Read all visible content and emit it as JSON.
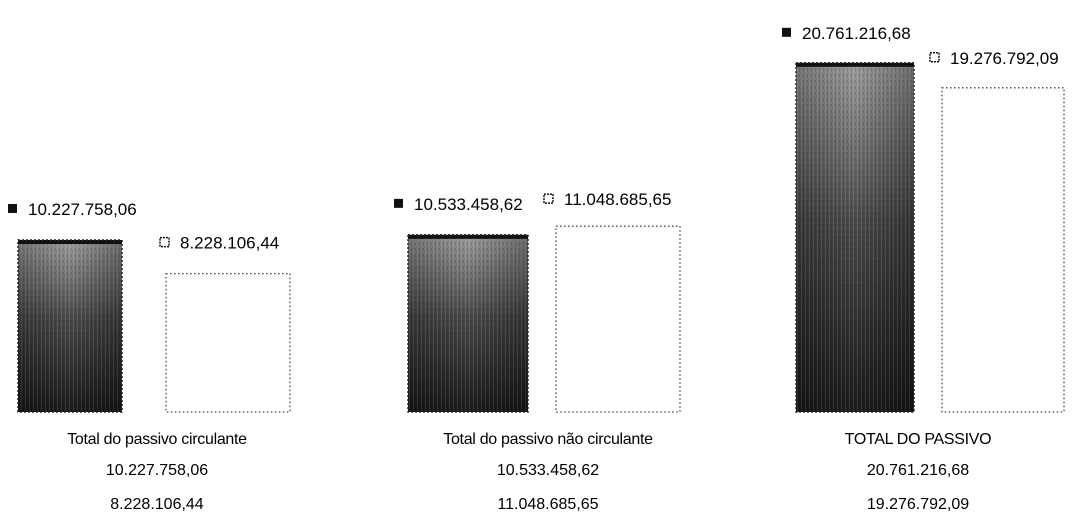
{
  "chart_data": {
    "type": "bar",
    "title": "",
    "xlabel": "",
    "ylabel": "",
    "categories": [
      "Total do passivo circulante",
      "Total do passivo não circulante",
      "TOTAL DO PASSIVO"
    ],
    "series": [
      {
        "values": [
          10227758.06,
          10533458.62,
          20761216.68
        ],
        "labels": [
          "10.227.758,06",
          "10.533.458,62",
          "20.761.216,68"
        ],
        "fill": "dark-gradient",
        "color": "#1a1a1a"
      },
      {
        "values": [
          8228106.44,
          11048685.65,
          19276792.09
        ],
        "labels": [
          "8.228.106,44",
          "11.048.685,65",
          "19.276.792,09"
        ],
        "fill": "white-dotted-outline",
        "color": "#ffffff"
      }
    ],
    "ylim": [
      0,
      22000000
    ],
    "grid": false,
    "legend": "none"
  }
}
